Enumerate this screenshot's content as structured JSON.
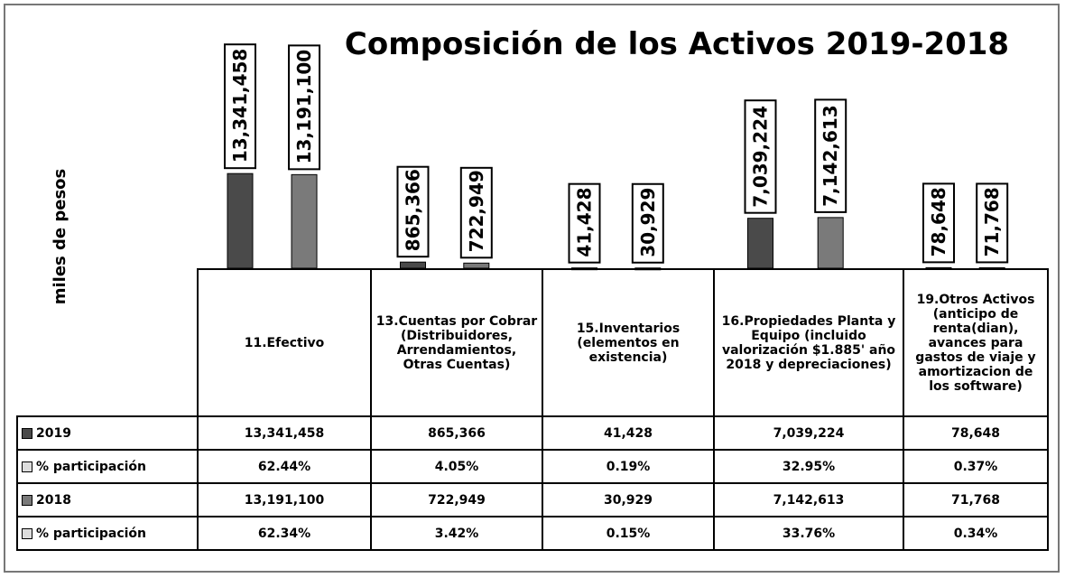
{
  "chart_data": {
    "type": "bar",
    "title": "Composición de los Activos 2019-2018",
    "y_label": "miles de pesos",
    "categories": [
      "11.Efectivo",
      "13.Cuentas por Cobrar (Distribuidores, Arrendamientos, Otras Cuentas)",
      "15.Inventarios (elementos en existencia)",
      "16.Propiedades Planta y Equipo (incluido valorización $1.885' año 2018 y depreciaciones)",
      "19.Otros Activos (anticipo de renta(dian), avances para gastos de viaje y amortizacion de los software)"
    ],
    "series": [
      {
        "name": "2019",
        "color": "#4a4a4a",
        "values": [
          13341458,
          865366,
          41428,
          7039224,
          78648
        ],
        "value_labels": [
          "13,341,458",
          "865,366",
          "41,428",
          "7,039,224",
          "78,648"
        ],
        "share_name": "% participación",
        "share_labels": [
          "62.44%",
          "4.05%",
          "0.19%",
          "32.95%",
          "0.37%"
        ]
      },
      {
        "name": "2018",
        "color": "#7a7a7a",
        "values": [
          13191100,
          722949,
          30929,
          7142613,
          71768
        ],
        "value_labels": [
          "13,191,100",
          "722,949",
          "30,929",
          "7,142,613",
          "71,768"
        ],
        "share_name": "% participación",
        "share_labels": [
          "62.34%",
          "3.42%",
          "0.15%",
          "33.76%",
          "0.34%"
        ]
      }
    ],
    "ylim": [
      0,
      14000000
    ]
  }
}
